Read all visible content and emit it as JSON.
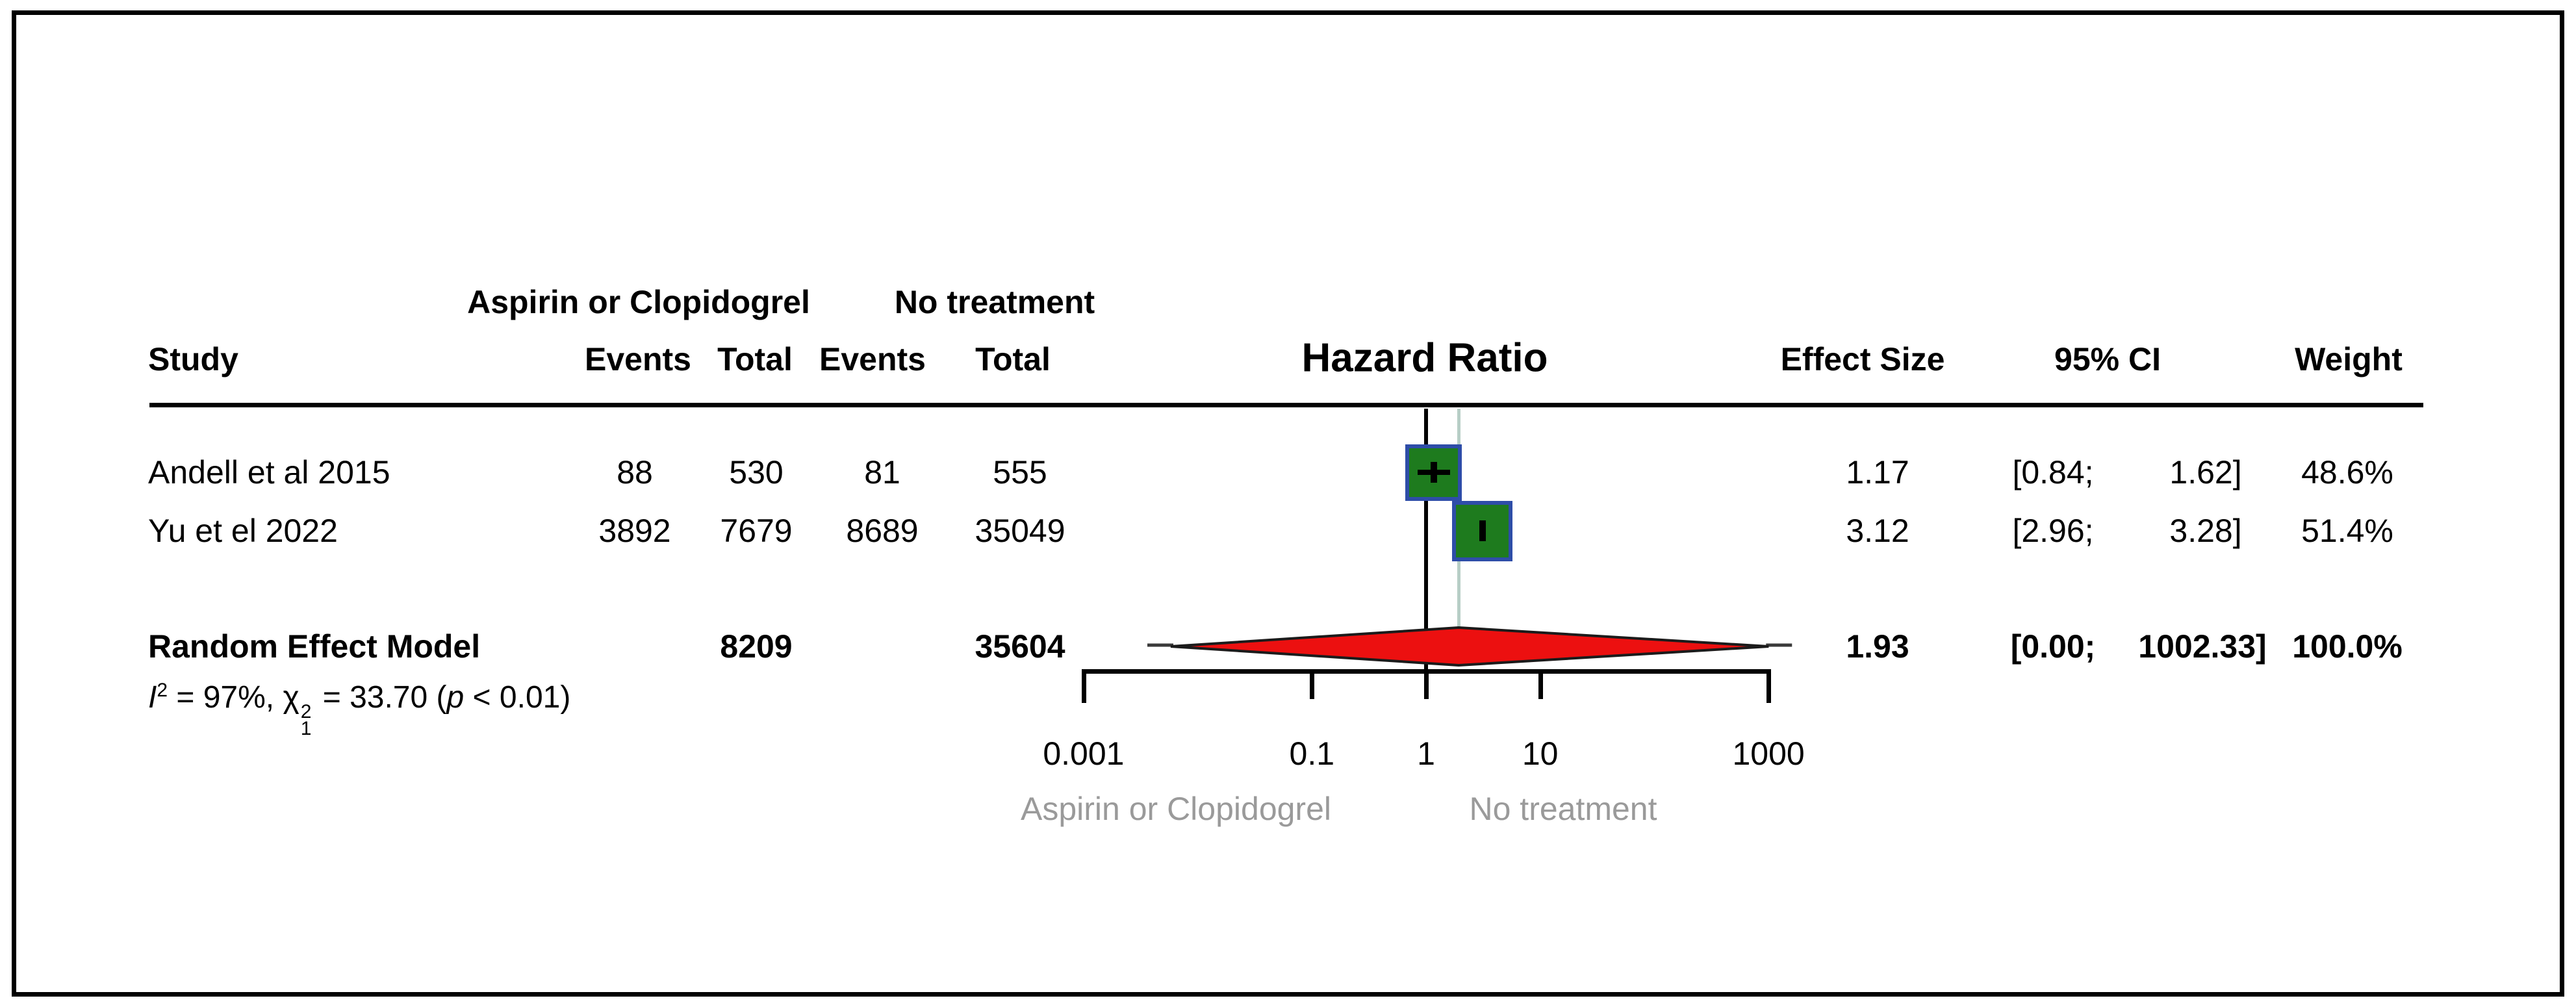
{
  "table": {
    "group_headers": {
      "treatment": "Aspirin or Clopidogrel",
      "control": "No treatment"
    },
    "columns": {
      "study": "Study",
      "events_treatment": "Events",
      "total_treatment": "Total",
      "events_control": "Events",
      "total_control": "Total",
      "hazard_ratio": "Hazard Ratio",
      "effect_size": "Effect Size",
      "ci": "95% CI",
      "weight": "Weight"
    },
    "rows": [
      {
        "study": "Andell et al 2015",
        "events_treatment": "88",
        "total_treatment": "530",
        "events_control": "81",
        "total_control": "555",
        "effect_size": "1.17",
        "ci_low": "[0.84;",
        "ci_high": "1.62]",
        "weight": "48.6%"
      },
      {
        "study": "Yu et el 2022",
        "events_treatment": "3892",
        "total_treatment": "7679",
        "events_control": "8689",
        "total_control": "35049",
        "effect_size": "3.12",
        "ci_low": "[2.96;",
        "ci_high": "3.28]",
        "weight": "51.4%"
      }
    ],
    "summary": {
      "label": "Random Effect Model",
      "total_treatment": "8209",
      "total_control": "35604",
      "effect_size": "1.93",
      "ci_low": "[0.00;",
      "ci_high": "1002.33]",
      "weight": "100.0%"
    },
    "heterogeneity": {
      "i_sym": "I",
      "i_sup": "2",
      "i_eq": " = 97%, ",
      "chi_sym": "χ",
      "chi_sup": "2",
      "chi_sub": "1",
      "chi_eq": " = 33.70 (",
      "p_sym": "p",
      "p_rest": " < 0.01)"
    }
  },
  "axis": {
    "tick_labels": [
      "0.001",
      "0.1",
      "1",
      "10",
      "1000"
    ],
    "left_label": "Aspirin or Clopidogrel",
    "right_label": "No treatment"
  },
  "chart_data": {
    "type": "forest",
    "title": "Hazard Ratio",
    "effect_measure": "Hazard Ratio",
    "x_scale": "log10",
    "x_ticks": [
      0.001,
      0.1,
      1,
      10,
      1000
    ],
    "x_range": [
      0.001,
      1000
    ],
    "reference_line": 1,
    "pooled_line": 1.93,
    "studies": [
      {
        "name": "Andell et al 2015",
        "effect": 1.17,
        "ci": [
          0.84,
          1.62
        ],
        "weight_pct": 48.6,
        "events_treatment": 88,
        "total_treatment": 530,
        "events_control": 81,
        "total_control": 555
      },
      {
        "name": "Yu et el 2022",
        "effect": 3.12,
        "ci": [
          2.96,
          3.28
        ],
        "weight_pct": 51.4,
        "events_treatment": 3892,
        "total_treatment": 7679,
        "events_control": 8689,
        "total_control": 35049
      }
    ],
    "summary": {
      "name": "Random Effect Model",
      "model": "Random Effect Model",
      "effect": 1.93,
      "ci": [
        0.0,
        1002.33
      ],
      "weight_pct": 100.0,
      "total_treatment": 8209,
      "total_control": 35604,
      "i_squared": "97%",
      "chi_squared": 33.7,
      "chi_df": 1,
      "p_value": "< 0.01"
    },
    "group_labels": {
      "left": "Aspirin or Clopidogrel",
      "right": "No treatment"
    },
    "colors": {
      "square_fill": "#1e7b1e",
      "square_border": "#2e4da8",
      "diamond_fill": "#ec1010",
      "diamond_border": "#1b1b1b",
      "reference_line": "#000000",
      "pooled_line": "#b7cec6",
      "axis_footer_gray": "#9a9a9a"
    },
    "legend_position": "none",
    "grid": false
  }
}
